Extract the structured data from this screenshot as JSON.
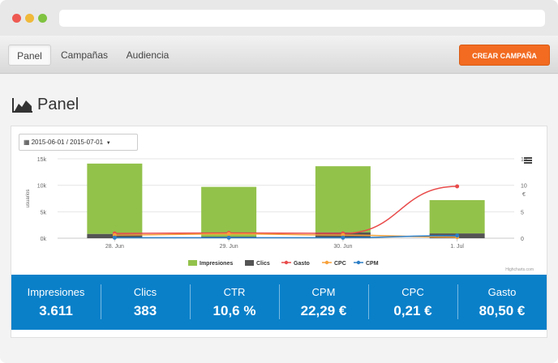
{
  "nav": {
    "items": [
      {
        "label": "Panel",
        "active": true
      },
      {
        "label": "Campañas",
        "active": false
      },
      {
        "label": "Audiencia",
        "active": false
      }
    ],
    "cta_label": "CREAR CAMPAÑA"
  },
  "page": {
    "title": "Panel",
    "title_icon": "area-chart-icon"
  },
  "filters": {
    "date_range": "2015-06-01 / 2015-07-01"
  },
  "chart_data": {
    "type": "bar",
    "categories": [
      "28. Jun",
      "29. Jun",
      "30. Jun",
      "1. Jul"
    ],
    "left_axis": {
      "label": "usuarios",
      "ticks": [
        "0k",
        "5k",
        "10k",
        "15k"
      ],
      "range": [
        0,
        15
      ]
    },
    "right_axis": {
      "label": "€",
      "ticks": [
        "0",
        "5",
        "10",
        "15"
      ],
      "range": [
        0,
        15
      ]
    },
    "series": [
      {
        "name": "Impresiones",
        "type": "bar",
        "axis": "left",
        "color": "#93c24b",
        "values": [
          13.3,
          9.4,
          12.5,
          6.3
        ]
      },
      {
        "name": "Clics",
        "type": "bar",
        "axis": "left",
        "color": "#545454",
        "values": [
          0.8,
          0.3,
          1.1,
          0.9
        ]
      },
      {
        "name": "Gasto",
        "type": "line",
        "axis": "right",
        "color": "#e94b4b",
        "values": [
          0.9,
          1.0,
          0.9,
          9.8
        ]
      },
      {
        "name": "CPC",
        "type": "line",
        "axis": "right",
        "color": "#f7a13a",
        "values": [
          0.6,
          0.8,
          0.6,
          0.2
        ]
      },
      {
        "name": "CPM",
        "type": "line",
        "axis": "right",
        "color": "#2c7fc7",
        "values": [
          0.1,
          0.1,
          0.1,
          0.5
        ]
      }
    ],
    "credits": "Highcharts.com"
  },
  "stats": [
    {
      "label": "Impresiones",
      "value": "3.611"
    },
    {
      "label": "Clics",
      "value": "383"
    },
    {
      "label": "CTR",
      "value": "10,6 %"
    },
    {
      "label": "CPM",
      "value": "22,29 €"
    },
    {
      "label": "CPC",
      "value": "0,21 €"
    },
    {
      "label": "Gasto",
      "value": "80,50 €"
    }
  ]
}
